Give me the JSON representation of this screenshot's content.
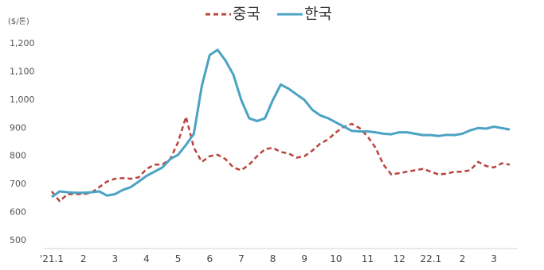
{
  "chart_data": {
    "type": "line",
    "y_label": "($/톤)",
    "categories": [
      "'21.1",
      null,
      null,
      null,
      "2",
      null,
      null,
      null,
      "3",
      null,
      null,
      null,
      "4",
      null,
      null,
      null,
      "5",
      null,
      null,
      null,
      "6",
      null,
      null,
      null,
      "7",
      null,
      null,
      null,
      "8",
      null,
      null,
      null,
      "9",
      null,
      null,
      null,
      "10",
      null,
      null,
      null,
      "11",
      null,
      null,
      null,
      "12",
      null,
      null,
      null,
      "22.1",
      null,
      null,
      null,
      "2",
      null,
      null,
      null,
      "3",
      null,
      null
    ],
    "series": [
      {
        "name": "중국",
        "color": "#b8433b",
        "dashed": true,
        "values": [
          675,
          640,
          665,
          665,
          665,
          670,
          690,
          710,
          720,
          722,
          720,
          725,
          755,
          770,
          770,
          790,
          850,
          940,
          830,
          780,
          800,
          805,
          790,
          760,
          750,
          770,
          800,
          825,
          830,
          815,
          810,
          795,
          800,
          820,
          845,
          860,
          885,
          905,
          915,
          900,
          870,
          830,
          770,
          735,
          740,
          745,
          750,
          755,
          745,
          735,
          738,
          745,
          745,
          750,
          780,
          765,
          760,
          775,
          770
        ]
      },
      {
        "name": "한국",
        "color": "#4ba3c3",
        "dashed": false,
        "values": [
          655,
          675,
          672,
          670,
          670,
          672,
          675,
          660,
          665,
          680,
          690,
          710,
          730,
          745,
          760,
          790,
          805,
          840,
          880,
          1050,
          1160,
          1178,
          1140,
          1090,
          1000,
          935,
          925,
          935,
          1000,
          1055,
          1040,
          1020,
          1000,
          965,
          945,
          935,
          920,
          905,
          890,
          888,
          888,
          885,
          880,
          878,
          885,
          885,
          880,
          875,
          875,
          872,
          876,
          875,
          880,
          892,
          900,
          898,
          905,
          900,
          895
        ]
      }
    ],
    "ylim": [
      500,
      1200
    ],
    "yticks": [
      500,
      600,
      700,
      800,
      900,
      {
        "value": 1000,
        "label": "1,000"
      },
      {
        "value": 1100,
        "label": "1,100"
      },
      {
        "value": 1200,
        "label": "1,200"
      }
    ],
    "grid": false
  }
}
